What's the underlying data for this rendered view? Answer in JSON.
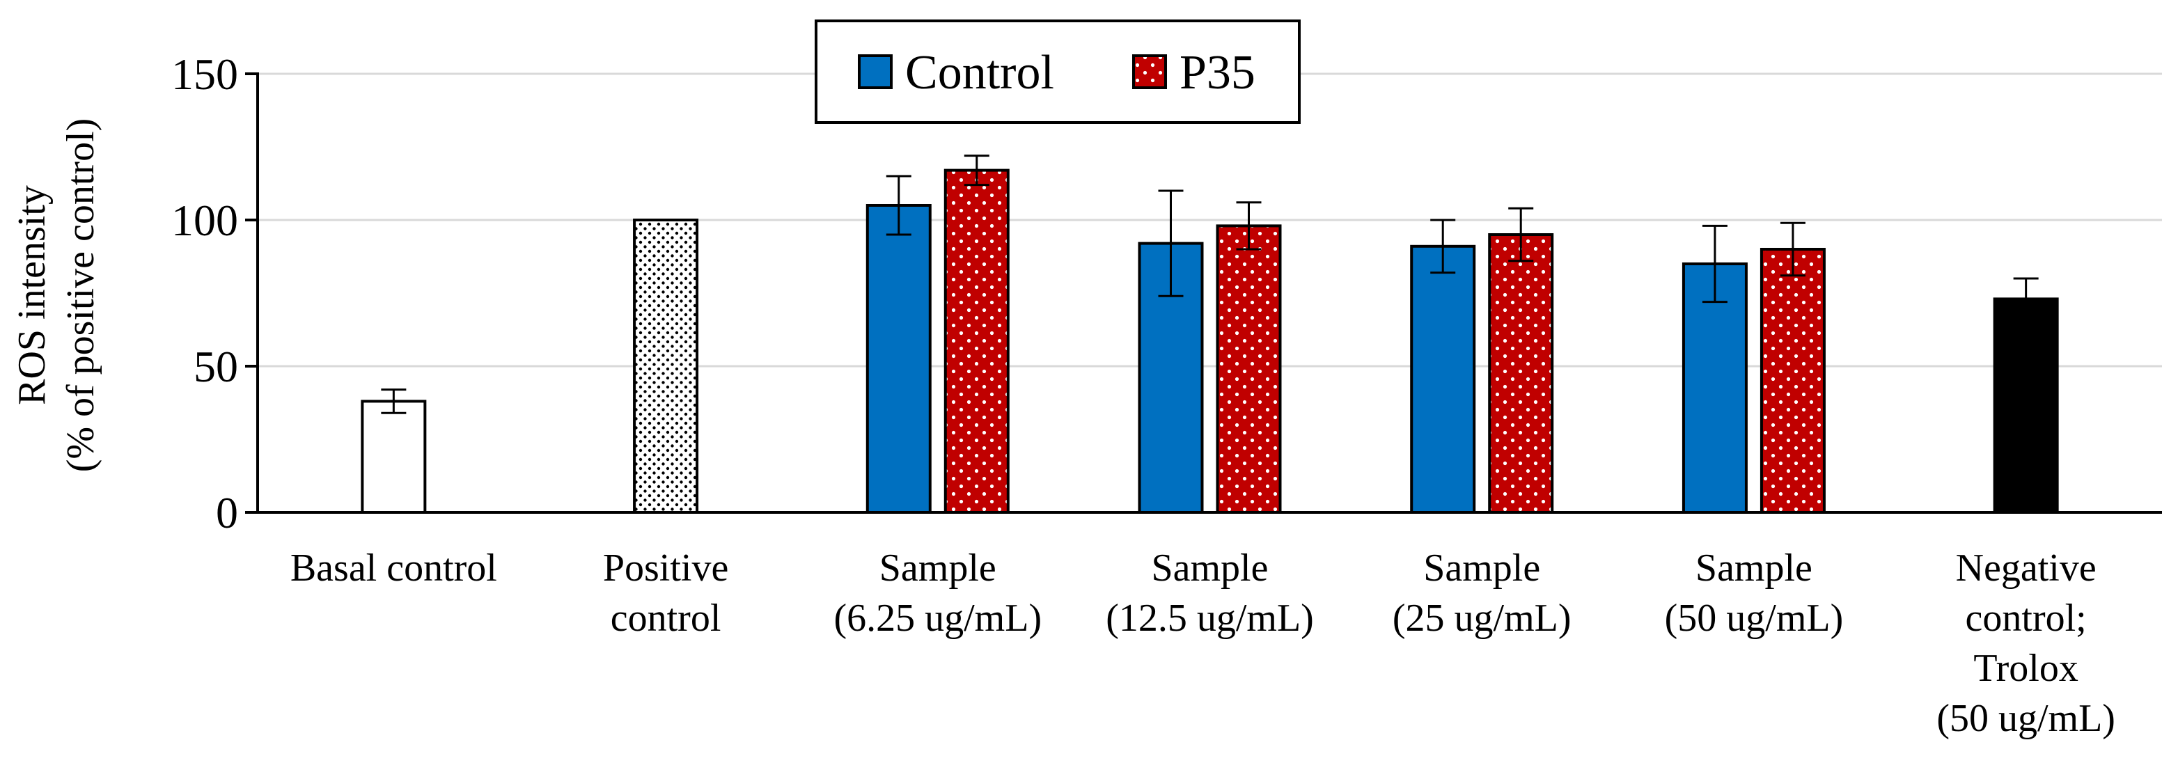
{
  "chart_data": {
    "type": "bar",
    "title": "",
    "xlabel": "",
    "ylabel_lines": [
      "ROS intensity",
      "(% of positive control)"
    ],
    "ylim": [
      0,
      150
    ],
    "yticks": [
      "0",
      "50",
      "100",
      "150"
    ],
    "ytick_values": [
      0,
      50,
      100,
      150
    ],
    "grid": true,
    "legend_position": "top-center",
    "legend": [
      {
        "key": "control",
        "label": "Control"
      },
      {
        "key": "p35",
        "label": "P35"
      }
    ],
    "categories": [
      {
        "label_lines": [
          "Basal control"
        ]
      },
      {
        "label_lines": [
          "Positive",
          "control"
        ]
      },
      {
        "label_lines": [
          "Sample",
          "(6.25 ug/mL)"
        ]
      },
      {
        "label_lines": [
          "Sample",
          "(12.5 ug/mL)"
        ]
      },
      {
        "label_lines": [
          "Sample",
          "(25 ug/mL)"
        ]
      },
      {
        "label_lines": [
          "Sample",
          "(50 ug/mL)"
        ]
      },
      {
        "label_lines": [
          "Negative",
          "control;",
          "Trolox",
          "(50 ug/mL)"
        ]
      }
    ],
    "bars": [
      {
        "category": 0,
        "style": "white",
        "value": 38,
        "error": 4
      },
      {
        "category": 1,
        "style": "dots-white",
        "value": 100,
        "error": 0
      },
      {
        "category": 2,
        "style": "control",
        "value": 105,
        "error": 10
      },
      {
        "category": 2,
        "style": "p35",
        "value": 117,
        "error": 5
      },
      {
        "category": 3,
        "style": "control",
        "value": 92,
        "error": 18
      },
      {
        "category": 3,
        "style": "p35",
        "value": 98,
        "error": 8
      },
      {
        "category": 4,
        "style": "control",
        "value": 91,
        "error": 9
      },
      {
        "category": 4,
        "style": "p35",
        "value": 95,
        "error": 9
      },
      {
        "category": 5,
        "style": "control",
        "value": 85,
        "error": 13
      },
      {
        "category": 5,
        "style": "p35",
        "value": 90,
        "error": 9
      },
      {
        "category": 6,
        "style": "black",
        "value": 73,
        "error": 7
      }
    ],
    "colors": {
      "control": "#0070c0",
      "p35": "#c00000",
      "black": "#000000",
      "white": "#ffffff",
      "gridline": "#d9d9d9"
    }
  }
}
